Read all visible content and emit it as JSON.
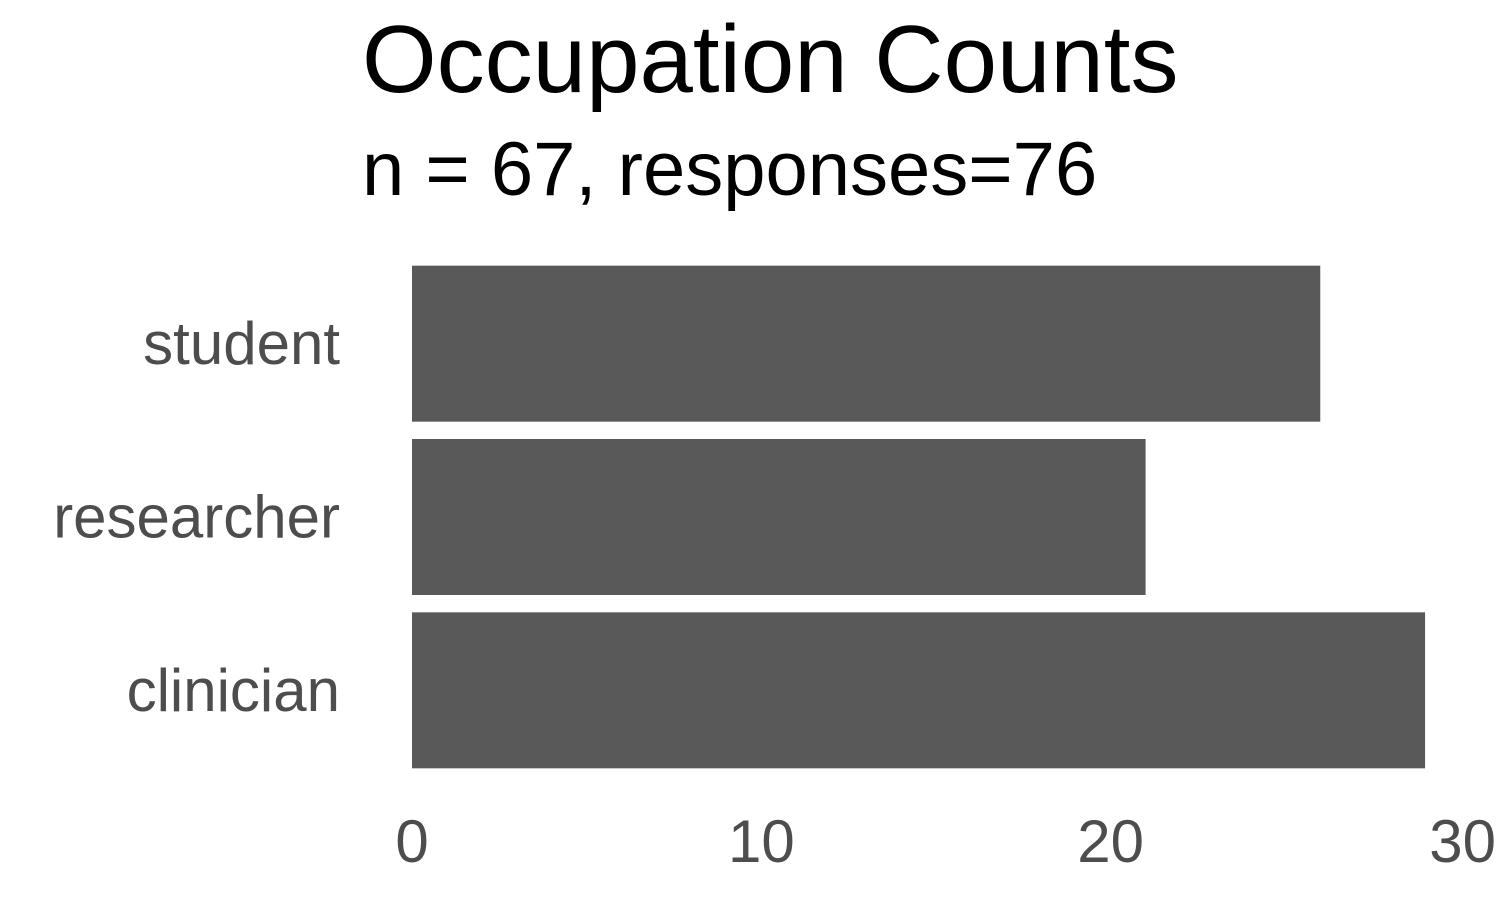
{
  "chart_data": {
    "type": "bar",
    "orientation": "horizontal",
    "title": "Occupation Counts",
    "subtitle": "n = 67, responses=76",
    "categories": [
      "student",
      "researcher",
      "clinician"
    ],
    "values": [
      26,
      21,
      29
    ],
    "xlabel": "",
    "ylabel": "",
    "xlim": [
      0,
      30
    ],
    "xticks": [
      0,
      10,
      20,
      30
    ],
    "grid": false,
    "legend": "none",
    "bar_color": "#595959",
    "label_color": "#4d4d4d"
  }
}
